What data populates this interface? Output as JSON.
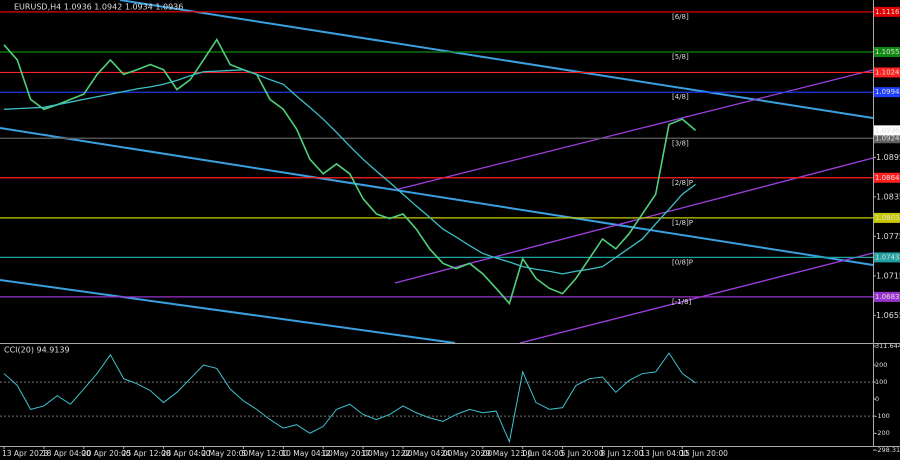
{
  "chart_data": {
    "type": "line",
    "title": "EURUSD,H4 1.0936 1.0942 1.0934 1.0936",
    "categories": [
      "13 Apr 2023",
      null,
      null,
      "18 Apr 04:00",
      null,
      null,
      "20 Apr 20:00",
      null,
      null,
      "25 Apr 12:00",
      null,
      null,
      "28 Apr 04:00",
      null,
      null,
      "2 May 20:00",
      null,
      null,
      "5 May 12:00",
      null,
      null,
      "10 May 04:00",
      null,
      null,
      "12 May 20:00",
      null,
      null,
      "17 May 12:00",
      null,
      null,
      "22 May 04:00",
      null,
      null,
      "24 May 20:00",
      null,
      null,
      "29 May 12:00",
      null,
      null,
      "1 Jun 04:00",
      null,
      null,
      "5 Jun 20:00",
      null,
      null,
      "8 Jun 12:00",
      null,
      null,
      "13 Jun 04:00",
      null,
      null,
      "15 Jun 20:00",
      null
    ],
    "series": [
      {
        "color": "#4fd07a",
        "values": [
          1.1066,
          1.1043,
          1.0983,
          1.0968,
          1.0975,
          1.0983,
          1.0991,
          1.1021,
          1.1043,
          1.1021,
          1.1028,
          1.1036,
          1.1028,
          1.0998,
          1.1013,
          1.1043,
          1.1074,
          1.1036,
          1.1028,
          1.1021,
          1.0983,
          1.0968,
          1.0938,
          1.0892,
          1.087,
          1.0885,
          1.087,
          1.0832,
          1.0809,
          1.0802,
          1.0809,
          1.0786,
          1.0756,
          1.0734,
          1.0726,
          1.0734,
          1.0718,
          1.0696,
          1.0673,
          1.0741,
          1.0711,
          1.0696,
          1.0688,
          1.0711,
          1.0741,
          1.0771,
          1.0756,
          1.0779,
          1.0809,
          1.0839,
          1.0945,
          1.0953,
          1.0936
        ]
      },
      {
        "color": "#3cc0c8",
        "values": [
          1.0968,
          1.0969,
          1.097,
          1.0971,
          1.0975,
          1.0979,
          1.0983,
          1.0987,
          1.0991,
          1.0995,
          1.0999,
          1.1002,
          1.1006,
          1.1012,
          1.1019,
          1.1025,
          1.1026,
          1.1027,
          1.1028,
          1.1021,
          1.1013,
          1.1006,
          1.0988,
          1.0971,
          1.0953,
          1.0933,
          1.0912,
          1.0892,
          1.0874,
          1.0857,
          1.0839,
          1.0821,
          1.0804,
          1.0786,
          1.0774,
          1.0761,
          1.0749,
          1.0742,
          1.0736,
          1.0729,
          1.0725,
          1.0722,
          1.0718,
          1.0722,
          1.0725,
          1.0729,
          1.0743,
          1.0757,
          1.0771,
          1.0794,
          1.0816,
          1.0839,
          1.0854
        ]
      }
    ],
    "ylim": [
      1.0616,
      1.1131
    ],
    "yticks": [
      1.0895,
      1.0835,
      1.0775,
      1.0715,
      1.0655
    ],
    "levels": [
      {
        "value": 1.1116,
        "label": "[6/8]",
        "color": "#e00000"
      },
      {
        "value": 1.1055,
        "label": "[5/8]",
        "color": "#108a10"
      },
      {
        "value": 1.1024,
        "color": "#ff2020"
      },
      {
        "value": 1.0994,
        "label": "[4/8]",
        "color": "#2040ff"
      },
      {
        "value": 1.0924,
        "label": "[3/8]",
        "color": "#606060"
      },
      {
        "value": 1.0864,
        "label": "[2/8]P",
        "color": "#ff2020"
      },
      {
        "value": 1.0803,
        "label": "[1/8]P",
        "color": "#c8c800"
      },
      {
        "value": 1.0743,
        "label": "[0/8]P",
        "color": "#20a0a0"
      },
      {
        "value": 1.0683,
        "label": "[-1/8]",
        "color": "#9932cc"
      }
    ],
    "indicator": {
      "title": "CCI(20) 94.9139",
      "color": "#40c0d0",
      "values": [
        150,
        80,
        -60,
        -40,
        20,
        -30,
        60,
        150,
        260,
        120,
        90,
        50,
        -20,
        40,
        120,
        200,
        180,
        60,
        -10,
        -60,
        -120,
        -170,
        -150,
        -200,
        -160,
        -60,
        -30,
        -90,
        -120,
        -90,
        -40,
        -80,
        -110,
        -130,
        -90,
        -60,
        -80,
        -70,
        -250,
        160,
        -20,
        -60,
        -50,
        80,
        120,
        130,
        40,
        110,
        150,
        160,
        270,
        150,
        95
      ],
      "ylim": [
        -298.31,
        311.6444
      ],
      "yticks": [
        311.6444,
        200,
        100,
        0,
        -100,
        -200,
        {
          "value": -298.31,
          "label": "-298.3100"
        }
      ]
    }
  }
}
